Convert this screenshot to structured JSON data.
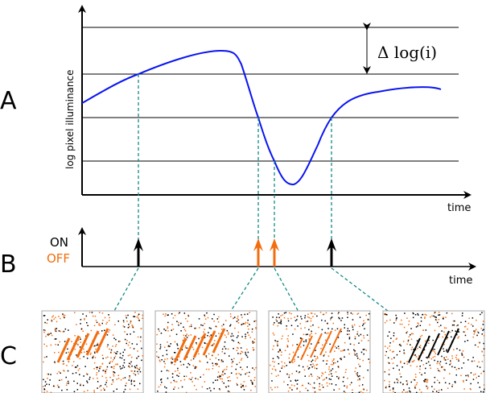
{
  "panel_labels": {
    "a": "A",
    "b": "B",
    "c": "C"
  },
  "plot_a": {
    "ylabel": "log pixel illuminance",
    "xlabel": "time",
    "threshold_label": "Δ log(i)"
  },
  "plot_b": {
    "on_label": "ON",
    "off_label": "OFF",
    "xlabel": "time",
    "events": [
      {
        "type": "ON"
      },
      {
        "type": "OFF"
      },
      {
        "type": "OFF"
      },
      {
        "type": "ON"
      }
    ]
  },
  "colors": {
    "curve": "#0a14f0",
    "on": "#000000",
    "off": "#f26d0f",
    "link": "#138a87",
    "axis": "#000000"
  }
}
